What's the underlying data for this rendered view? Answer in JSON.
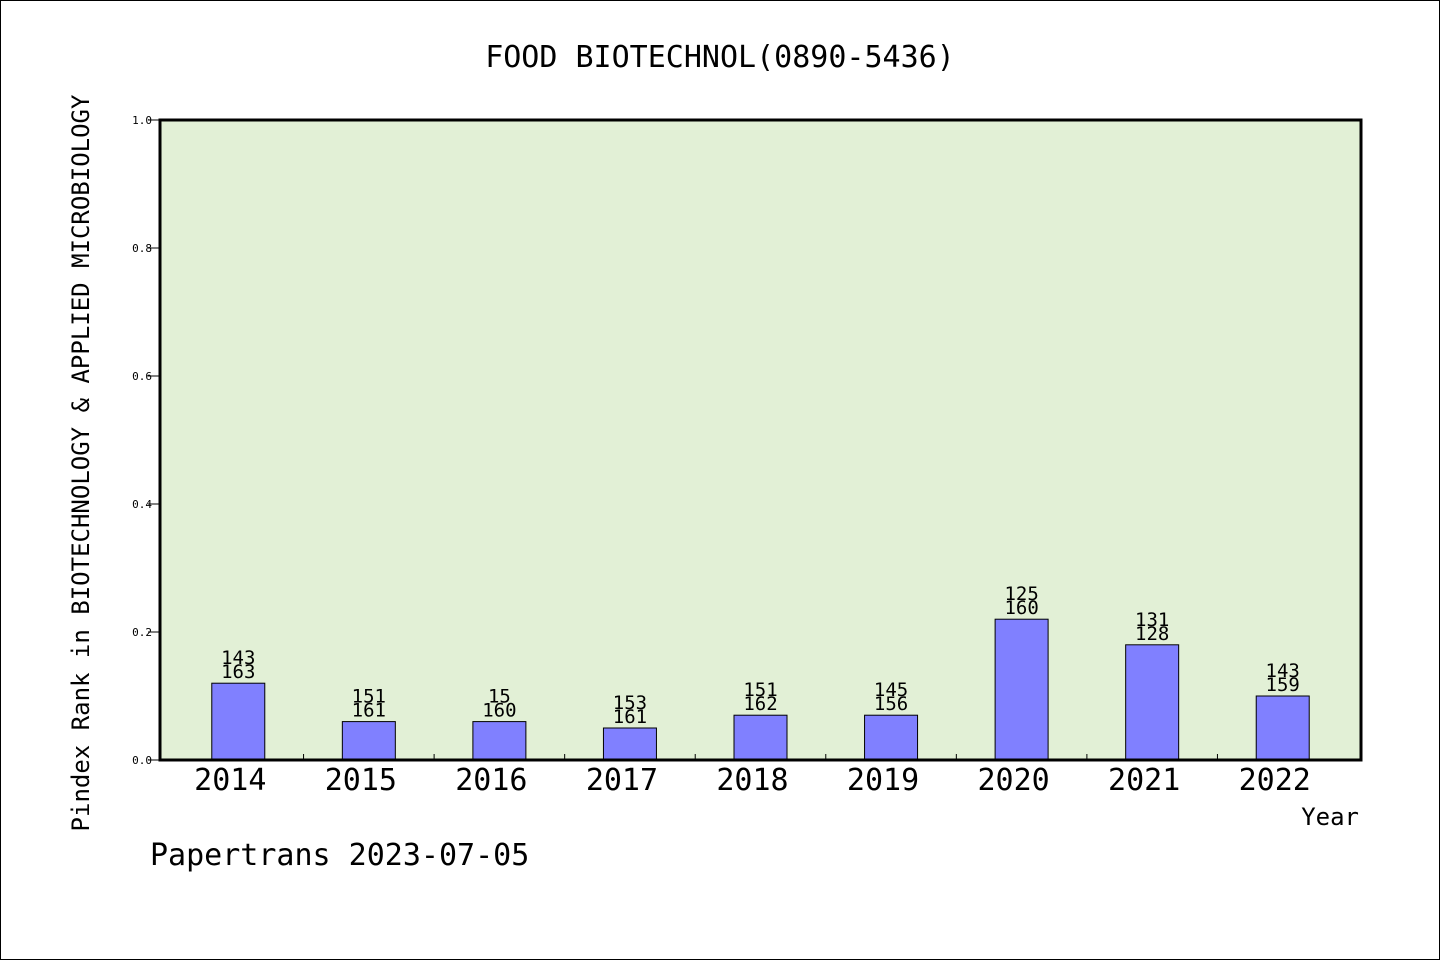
{
  "chart_data": {
    "type": "bar",
    "title": "FOOD BIOTECHNOL(0890-5436)",
    "xlabel": "Year",
    "ylabel": "Pindex Rank in BIOTECHNOLOGY & APPLIED MICROBIOLOGY",
    "ylim": [
      0,
      1.0
    ],
    "yticks": [
      "0.0",
      "0.2",
      "0.4",
      "0.6",
      "0.8",
      "1.0"
    ],
    "categories": [
      "2014",
      "2015",
      "2016",
      "2017",
      "2018",
      "2019",
      "2020",
      "2021",
      "2022"
    ],
    "values": [
      0.12,
      0.06,
      0.06,
      0.05,
      0.07,
      0.07,
      0.22,
      0.18,
      0.1
    ],
    "label_top": [
      "143",
      "151",
      "15",
      "153",
      "151",
      "145",
      "125",
      "131",
      "143"
    ],
    "label_bottom": [
      "163",
      "161",
      "160",
      "161",
      "162",
      "156",
      "160",
      "128",
      "159"
    ],
    "grid": false,
    "bar_color": "#8080ff",
    "plot_background": "#e2f0d6"
  },
  "footer": "Papertrans 2023-07-05"
}
